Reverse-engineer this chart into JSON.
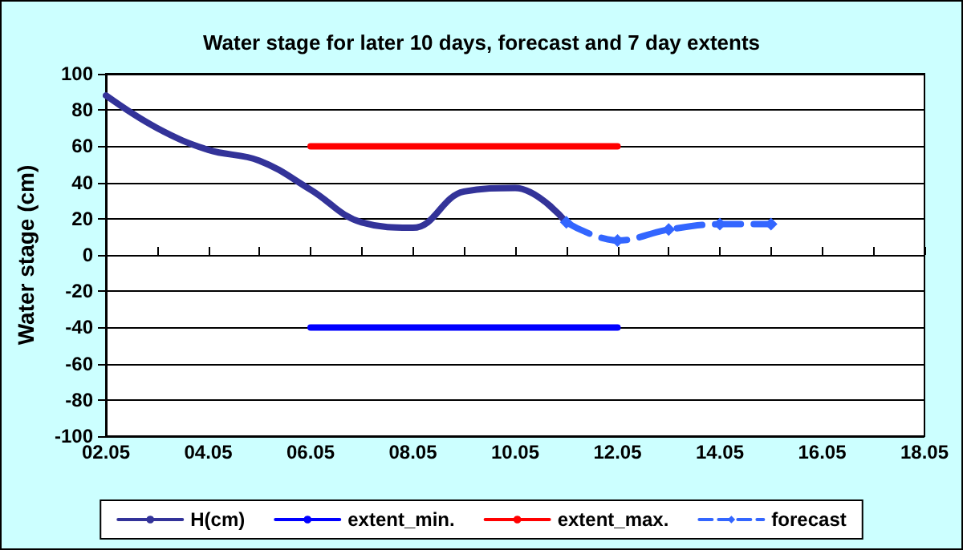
{
  "chart_data": {
    "type": "line",
    "title": "Water stage for later 10 days, forecast and 7 day extents",
    "ylabel": "Water stage (cm)",
    "categories": [
      "02.05",
      null,
      "04.05",
      null,
      "06.05",
      null,
      "08.05",
      null,
      "10.05",
      null,
      "12.05",
      null,
      "14.05",
      null,
      "16.05",
      null,
      "18.05"
    ],
    "series": [
      {
        "name": "H(cm)",
        "color": "#333399",
        "marker": "none",
        "line_style": "solid",
        "values": [
          88,
          70,
          58,
          52,
          36,
          18,
          15,
          35,
          37,
          18,
          null,
          null,
          null,
          null,
          null,
          null,
          null
        ]
      },
      {
        "name": "extent_min.",
        "color": "#0000ff",
        "marker": "none",
        "line_style": "solid",
        "values": [
          null,
          null,
          null,
          null,
          -40,
          -40,
          -40,
          -40,
          -40,
          -40,
          -40,
          null,
          null,
          null,
          null,
          null,
          null
        ]
      },
      {
        "name": "extent_max.",
        "color": "#ff0000",
        "marker": "none",
        "line_style": "solid",
        "values": [
          null,
          null,
          null,
          null,
          60,
          60,
          60,
          60,
          60,
          60,
          60,
          null,
          null,
          null,
          null,
          null,
          null
        ]
      },
      {
        "name": "forecast",
        "color": "#3366ff",
        "marker": "diamond",
        "line_style": "dashed",
        "values": [
          null,
          null,
          null,
          null,
          null,
          null,
          null,
          null,
          null,
          18,
          8,
          14,
          17,
          17,
          null,
          null,
          null
        ]
      }
    ],
    "ylim": [
      -100,
      100
    ],
    "yticks": [
      -100,
      -80,
      -60,
      -40,
      -20,
      0,
      20,
      40,
      60,
      80,
      100
    ],
    "grid": "y",
    "legend": "bottom"
  }
}
